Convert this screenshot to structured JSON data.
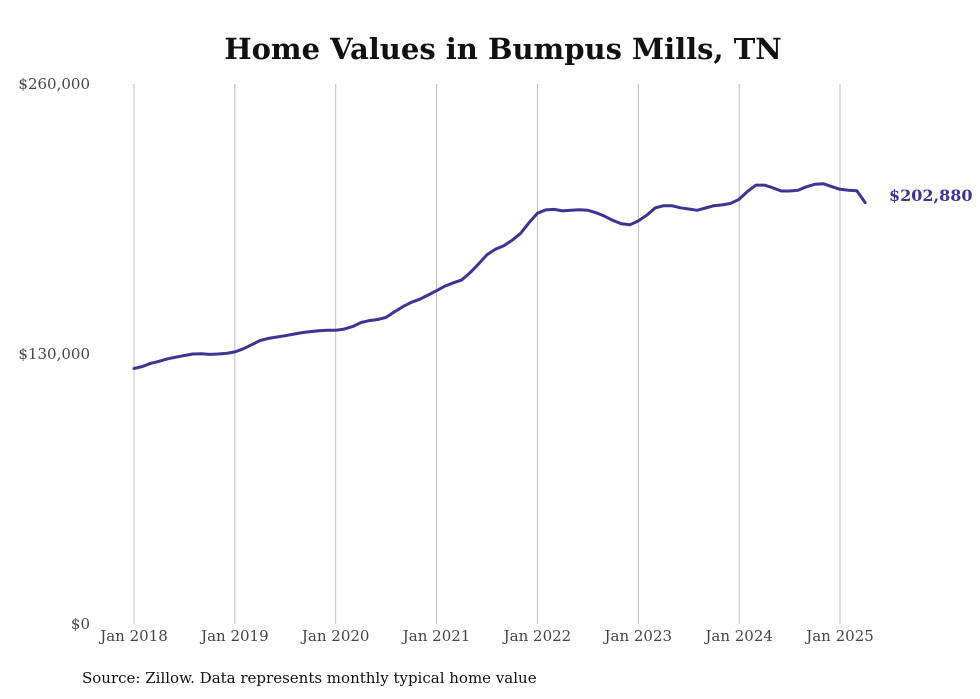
{
  "chart_data": {
    "type": "line",
    "title": "Home Values in Bumpus Mills, TN",
    "source": "Source: Zillow. Data represents monthly typical home value",
    "ylim": [
      0,
      260000
    ],
    "y_tick_labels": [
      "$0",
      "$130,000",
      "$260,000"
    ],
    "y_ticks": [
      0,
      130000,
      260000
    ],
    "x_tick_labels": [
      "Jan 2018",
      "Jan 2019",
      "Jan 2020",
      "Jan 2021",
      "Jan 2022",
      "Jan 2023",
      "Jan 2024",
      "Jan 2025"
    ],
    "x_ticks": [
      "2018-01",
      "2019-01",
      "2020-01",
      "2021-01",
      "2022-01",
      "2023-01",
      "2024-01",
      "2025-01"
    ],
    "x_range": [
      "2018-01",
      "2025-04"
    ],
    "grid": "vertical at x ticks",
    "line_color": "#3d3494",
    "end_label": "$202,880",
    "series": [
      {
        "x": [
          "2018-01",
          "2018-02",
          "2018-03",
          "2018-04",
          "2018-05",
          "2018-06",
          "2018-07",
          "2018-08",
          "2018-09",
          "2018-10",
          "2018-11",
          "2018-12",
          "2019-01",
          "2019-02",
          "2019-03",
          "2019-04",
          "2019-05",
          "2019-06",
          "2019-07",
          "2019-08",
          "2019-09",
          "2019-10",
          "2019-11",
          "2019-12",
          "2020-01",
          "2020-02",
          "2020-03",
          "2020-04",
          "2020-05",
          "2020-06",
          "2020-07",
          "2020-08",
          "2020-09",
          "2020-10",
          "2020-11",
          "2020-12",
          "2021-01",
          "2021-02",
          "2021-03",
          "2021-04",
          "2021-05",
          "2021-06",
          "2021-07",
          "2021-08",
          "2021-09",
          "2021-10",
          "2021-11",
          "2021-12",
          "2022-01",
          "2022-02",
          "2022-03",
          "2022-04",
          "2022-05",
          "2022-06",
          "2022-07",
          "2022-08",
          "2022-09",
          "2022-10",
          "2022-11",
          "2022-12",
          "2023-01",
          "2023-02",
          "2023-03",
          "2023-04",
          "2023-05",
          "2023-06",
          "2023-07",
          "2023-08",
          "2023-09",
          "2023-10",
          "2023-11",
          "2023-12",
          "2024-01",
          "2024-02",
          "2024-03",
          "2024-04",
          "2024-05",
          "2024-06",
          "2024-07",
          "2024-08",
          "2024-09",
          "2024-10",
          "2024-11",
          "2024-12",
          "2025-01",
          "2025-02",
          "2025-03",
          "2025-04"
        ],
        "values": [
          123000,
          124000,
          125500,
          126500,
          127700,
          128500,
          129300,
          130000,
          130100,
          129800,
          130000,
          130300,
          131000,
          132500,
          134500,
          136500,
          137500,
          138200,
          138800,
          139600,
          140300,
          140800,
          141200,
          141400,
          141400,
          142000,
          143200,
          145100,
          146100,
          146600,
          147600,
          150300,
          152800,
          154900,
          156400,
          158400,
          160500,
          162700,
          164300,
          165700,
          169200,
          173400,
          177800,
          180400,
          182100,
          184800,
          188100,
          193200,
          197800,
          199400,
          199600,
          198900,
          199200,
          199500,
          199200,
          198000,
          196300,
          194300,
          192700,
          192200,
          194100,
          196800,
          200300,
          201400,
          201400,
          200400,
          199800,
          199200,
          200300,
          201400,
          201800,
          202500,
          204500,
          208300,
          211300,
          211300,
          210000,
          208500,
          208500,
          208800,
          210500,
          211700,
          212000,
          210600,
          209300,
          208800,
          208600,
          202880
        ]
      }
    ]
  }
}
